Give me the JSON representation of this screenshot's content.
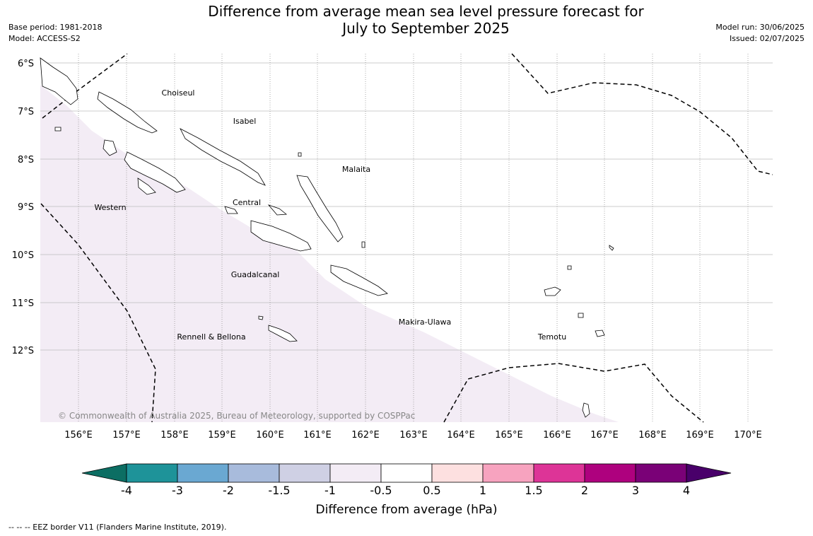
{
  "title": {
    "line1": "Difference from average mean sea level pressure forecast for",
    "line2": "July to September 2025"
  },
  "meta_left": {
    "base_period": "Base period: 1981-2018",
    "model": "Model: ACCESS-S2"
  },
  "meta_right": {
    "model_run": "Model run: 30/06/2025",
    "issued": "Issued: 02/07/2025"
  },
  "map": {
    "lat_labels": [
      "6°S",
      "7°S",
      "8°S",
      "9°S",
      "10°S",
      "11°S",
      "12°S"
    ],
    "lon_labels": [
      "156°E",
      "157°E",
      "158°E",
      "159°E",
      "160°E",
      "161°E",
      "162°E",
      "163°E",
      "164°E",
      "165°E",
      "166°E",
      "167°E",
      "168°E",
      "169°E",
      "170°E"
    ],
    "regions": {
      "choiseul": "Choiseul",
      "isabel": "Isabel",
      "malaita": "Malaita",
      "western": "Western",
      "central": "Central",
      "guadalcanal": "Guadalcanal",
      "makira_ulawa": "Makira-Ulawa",
      "rennell_bellona": "Rennell & Bellona",
      "temotu": "Temotu"
    },
    "copyright": "© Commonwealth of Australia 2025, Bureau of Meteorology, supported by COSPPac",
    "shaded_anomaly_color": "#f3ecf5"
  },
  "colorbar": {
    "ticks": [
      "-4",
      "-3",
      "-2",
      "-1.5",
      "-1",
      "-0.5",
      "0.5",
      "1",
      "1.5",
      "2",
      "3",
      "4"
    ],
    "colors": [
      "#0c6e63",
      "#1e9399",
      "#6aa8d2",
      "#a8bbdc",
      "#cfd0e4",
      "#f3ecf5",
      "#ffffff",
      "#fde0e0",
      "#f7a3bf",
      "#dd3497",
      "#ae017e",
      "#7a0177",
      "#49006a"
    ],
    "label": "Difference from average (hPa)"
  },
  "legend_note": "-- -- -- EEZ border V11 (Flanders Marine Institute, 2019)."
}
